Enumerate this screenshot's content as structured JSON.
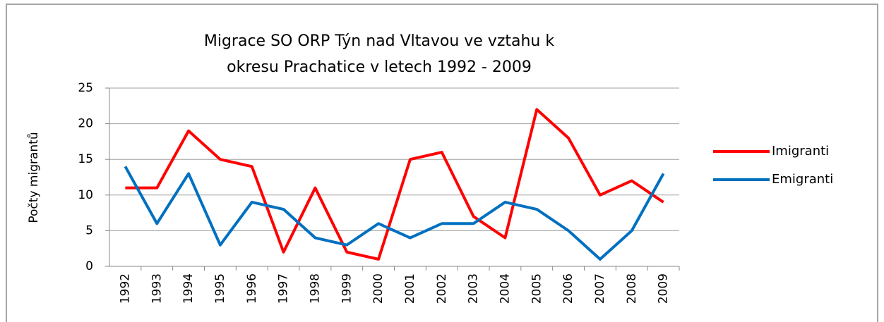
{
  "chart_data": {
    "type": "line",
    "title": [
      "Migrace SO ORP Týn nad Vltavou ve vztahu k",
      "okresu Prachatice v letech 1992 - 2009"
    ],
    "y_label": "Počty migrantů",
    "categories": [
      "1992",
      "1993",
      "1994",
      "1995",
      "1996",
      "1997",
      "1998",
      "1999",
      "2000",
      "2001",
      "2002",
      "2003",
      "2004",
      "2005",
      "2006",
      "2007",
      "2008",
      "2009"
    ],
    "series": [
      {
        "name": "Imigranti",
        "color": "#ff0000",
        "values": [
          11,
          11,
          19,
          15,
          14,
          2,
          11,
          2,
          1,
          15,
          16,
          7,
          4,
          22,
          18,
          10,
          12,
          9
        ]
      },
      {
        "name": "Emigranti",
        "color": "#0070c0",
        "values": [
          14,
          6,
          13,
          3,
          9,
          8,
          4,
          3,
          6,
          4,
          6,
          6,
          9,
          8,
          5,
          1,
          5,
          13
        ]
      }
    ],
    "ylim": [
      0,
      25
    ],
    "yticks": [
      0,
      5,
      10,
      15,
      20,
      25
    ],
    "grid": true,
    "legend": "right"
  }
}
